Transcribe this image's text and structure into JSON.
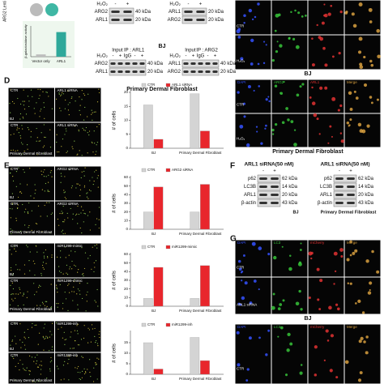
{
  "panel_letters": [
    "D",
    "E",
    "F",
    "G"
  ],
  "beta_gal": {
    "header": "ARG2 Lenti",
    "chart": {
      "type": "bar",
      "ylabel": "β-galactosidase activity",
      "categories": [
        "Vector only",
        "ARL1"
      ],
      "values": [
        0.15,
        1.6
      ],
      "colors": [
        "#bdbdbd",
        "#2fa89a"
      ],
      "ylim": [
        0,
        2
      ]
    }
  },
  "blots": [
    {
      "condition": "H₂O₂",
      "lanes": [
        "-",
        "+"
      ],
      "rows": [
        {
          "protein": "ARG2",
          "size": "40 kDa"
        },
        {
          "protein": "ARL1",
          "size": "20 kDa"
        }
      ]
    },
    {
      "condition": "H₂O₂",
      "lanes": [
        "-",
        "+"
      ],
      "rows": [
        {
          "protein": "ARL1",
          "size": "20 kDa"
        },
        {
          "protein": "ARG2",
          "size": "20 kDa"
        }
      ]
    },
    {
      "groups": [
        "Input",
        "IP : ARL1"
      ],
      "condition": "H₂O₂",
      "lanes": [
        "-",
        "+",
        "IgG",
        "-",
        "+"
      ],
      "rows": [
        {
          "protein": "ARG2",
          "size": "40 kDa"
        },
        {
          "protein": "ARL1",
          "size": "20 kDa"
        }
      ]
    },
    {
      "groups": [
        "Input",
        "IP : ARG2"
      ],
      "condition": "H₂O₂",
      "lanes": [
        "-",
        "+",
        "IgG",
        "-",
        "+"
      ],
      "rows": [
        {
          "protein": "ARL1",
          "size": "40 kDa"
        },
        {
          "protein": "ARG2",
          "size": "20 kDa"
        }
      ]
    },
    {
      "header": "ARL1 siRNA(50 nM)",
      "lanes": [
        "-",
        "+"
      ],
      "rows": [
        {
          "protein": "p62",
          "size": "62 kDa"
        },
        {
          "protein": "LC3B",
          "size": "14 kDa"
        },
        {
          "protein": "ARL1",
          "size": "20 kDa"
        },
        {
          "protein": "β-actin",
          "size": "43 kDa"
        }
      ]
    },
    {
      "header": "ARL1 siRNA(50 nM)",
      "lanes": [
        "-",
        "+"
      ],
      "rows": [
        {
          "protein": "p62",
          "size": "62 kDa"
        },
        {
          "protein": "LC3B",
          "size": "14 kDa"
        },
        {
          "protein": "ARL1",
          "size": "20 kDa"
        },
        {
          "protein": "β-actin",
          "size": "43 kDa"
        }
      ]
    }
  ],
  "blot_captions": [
    "BJ",
    "Primary Dermal Fibroblast",
    "BJ",
    "Primary Dermal Fibroblast"
  ],
  "micro_grids": [
    {
      "rows": [
        "CTR",
        "H₂O₂"
      ],
      "caption": "BJ"
    },
    {
      "columns": [
        "DAPI",
        "ARG2",
        "ARL1",
        "Merge"
      ],
      "rows": [
        "CTR",
        "H₂O₂"
      ],
      "caption": "Primary Dermal Fibroblast"
    },
    {
      "columns": [
        "CTR",
        "ARL1 siRNA"
      ],
      "rows": [
        "BJ",
        "Primary Dermal Fibroblast"
      ]
    },
    {
      "columns": [
        "CTR",
        "ARG2 siRNA"
      ],
      "rows": [
        "BJ",
        "Primary Dermal Fibroblast"
      ]
    },
    {
      "columns": [
        "CTR",
        "miR1299-mimic"
      ],
      "rows": [
        "BJ",
        "Primary Dermal Fibroblast"
      ]
    },
    {
      "columns": [
        "CTR",
        "miR1299-inh"
      ],
      "rows": [
        "BJ",
        "Primary Dermal Fibroblast"
      ]
    },
    {
      "columns": [
        "DAPI",
        "LC3",
        "mCherry",
        "Merge"
      ],
      "rows": [
        "CTR",
        "ARL1 siRNA"
      ],
      "caption": "BJ"
    },
    {
      "columns": [
        "DAPI",
        "LC3",
        "mCherry",
        "Merge"
      ],
      "rows": [
        "CTR"
      ]
    }
  ],
  "chart_data": [
    {
      "type": "bar",
      "ylabel": "# of cells",
      "categories": [
        "BJ",
        "Primary Dermal Fibroblast"
      ],
      "ylim": [
        0,
        20
      ],
      "yticks": [
        0,
        5,
        10,
        15,
        20
      ],
      "series": [
        {
          "name": "CTR",
          "color": "#d4d4d4",
          "values": [
            15.5,
            19.5
          ]
        },
        {
          "name": "ARL1 siRNA",
          "color": "#e8262c",
          "values": [
            3.2,
            6.2
          ]
        }
      ]
    },
    {
      "type": "bar",
      "ylabel": "# of cells",
      "categories": [
        "BJ",
        "Primary Dermal Fibroblast"
      ],
      "ylim": [
        0,
        60
      ],
      "yticks": [
        0,
        10,
        20,
        30,
        40,
        50,
        60
      ],
      "series": [
        {
          "name": "CTR",
          "color": "#d4d4d4",
          "values": [
            20,
            20
          ]
        },
        {
          "name": "ARG2 siRNA",
          "color": "#e8262c",
          "values": [
            49,
            52
          ]
        }
      ]
    },
    {
      "type": "bar",
      "ylabel": "# of cells",
      "categories": [
        "BJ",
        "Primary Dermal Fibroblast"
      ],
      "ylim": [
        0,
        60
      ],
      "yticks": [
        0,
        10,
        20,
        30,
        40,
        50,
        60
      ],
      "series": [
        {
          "name": "CTR",
          "color": "#d4d4d4",
          "values": [
            9,
            9
          ]
        },
        {
          "name": "miR1299-mimic",
          "color": "#e8262c",
          "values": [
            45,
            47
          ]
        }
      ]
    },
    {
      "type": "bar",
      "ylabel": "# of cells",
      "categories": [
        "BJ",
        "Primary Dermal Fibroblast"
      ],
      "ylim": [
        0,
        20
      ],
      "yticks": [
        0,
        5,
        10,
        15
      ],
      "series": [
        {
          "name": "CTR",
          "color": "#d4d4d4",
          "values": [
            15,
            17.5
          ]
        },
        {
          "name": "miR1299-inh",
          "color": "#e8262c",
          "values": [
            2.5,
            6.5
          ]
        }
      ]
    }
  ]
}
